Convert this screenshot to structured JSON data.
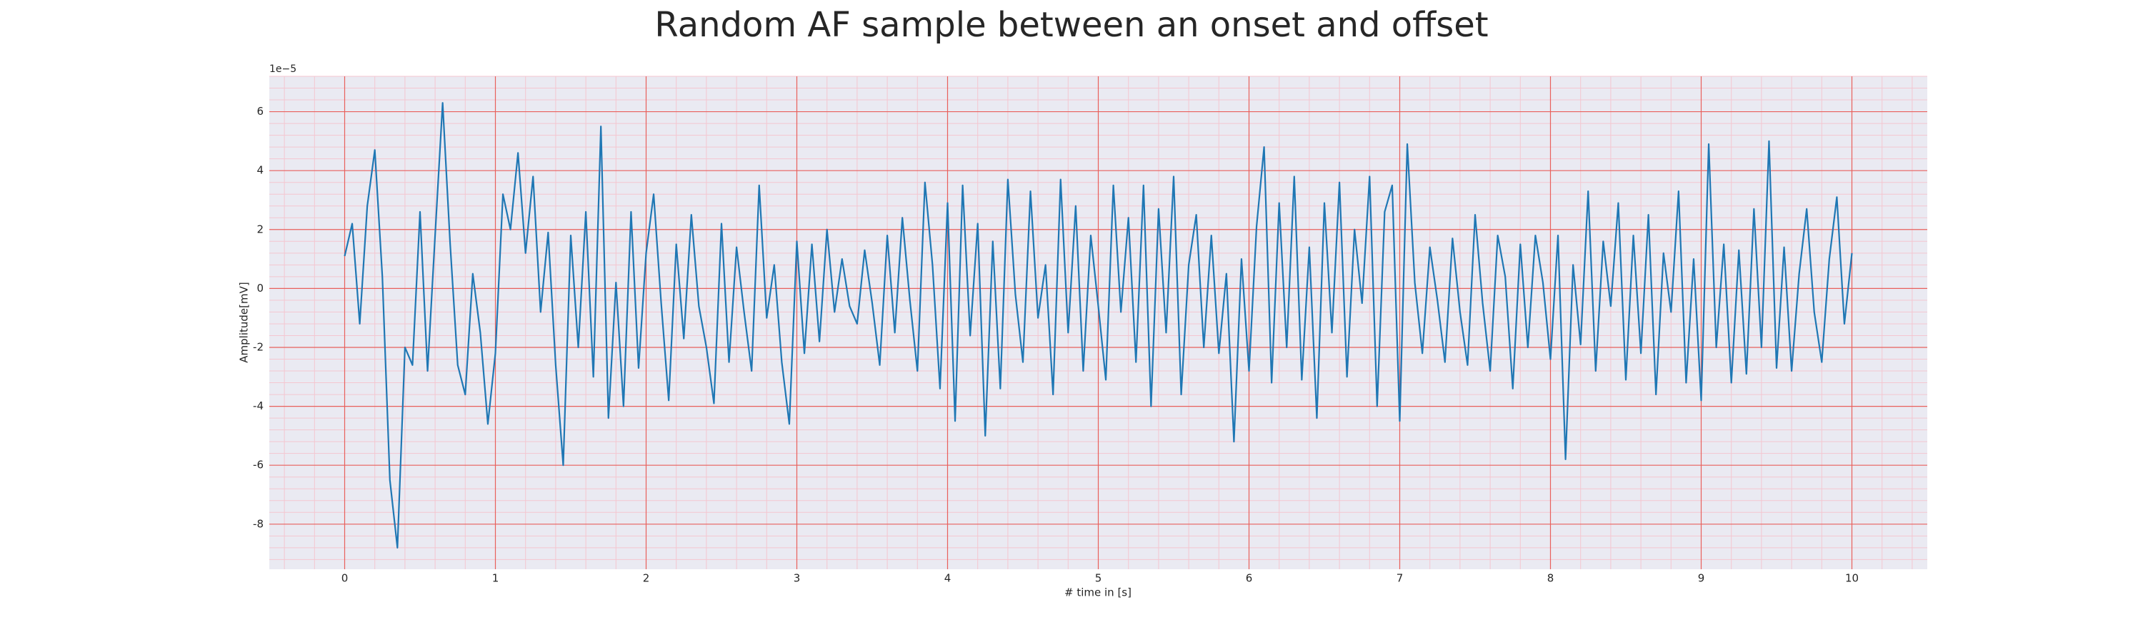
{
  "chart_data": {
    "type": "line",
    "title": "Random AF sample between an onset and offset",
    "xlabel": "# time in [s]",
    "ylabel": "Amplitude[mV]",
    "y_offset_text": "1e−5",
    "color": "#1f77b4",
    "grid": true,
    "minor_divisions": 5,
    "xlim": [
      -0.5,
      10.5
    ],
    "ylim": [
      -9.53,
      7.2
    ],
    "xticks": [
      0,
      1,
      2,
      3,
      4,
      5,
      6,
      7,
      8,
      9,
      10
    ],
    "yticks": [
      -8,
      -6,
      -4,
      -2,
      0,
      2,
      4,
      6
    ],
    "x": [
      0,
      0.05,
      0.1,
      0.15,
      0.2,
      0.25,
      0.3,
      0.35,
      0.4,
      0.45,
      0.5,
      0.55,
      0.6,
      0.65,
      0.7,
      0.75,
      0.8,
      0.85,
      0.9,
      0.95,
      1,
      1.05,
      1.1,
      1.15,
      1.2,
      1.25,
      1.3,
      1.35,
      1.4,
      1.45,
      1.5,
      1.55,
      1.6,
      1.65,
      1.7,
      1.75,
      1.8,
      1.85,
      1.9,
      1.95,
      2,
      2.05,
      2.1,
      2.15,
      2.2,
      2.25,
      2.3,
      2.35,
      2.4,
      2.45,
      2.5,
      2.55,
      2.6,
      2.65,
      2.7,
      2.75,
      2.8,
      2.85,
      2.9,
      2.95,
      3,
      3.05,
      3.1,
      3.15,
      3.2,
      3.25,
      3.3,
      3.35,
      3.4,
      3.45,
      3.5,
      3.55,
      3.6,
      3.65,
      3.7,
      3.75,
      3.8,
      3.85,
      3.9,
      3.95,
      4,
      4.05,
      4.1,
      4.15,
      4.2,
      4.25,
      4.3,
      4.35,
      4.4,
      4.45,
      4.5,
      4.55,
      4.6,
      4.65,
      4.7,
      4.75,
      4.8,
      4.85,
      4.9,
      4.95,
      5,
      5.05,
      5.1,
      5.15,
      5.2,
      5.25,
      5.3,
      5.35,
      5.4,
      5.45,
      5.5,
      5.55,
      5.6,
      5.65,
      5.7,
      5.75,
      5.8,
      5.85,
      5.9,
      5.95,
      6,
      6.05,
      6.1,
      6.15,
      6.2,
      6.25,
      6.3,
      6.35,
      6.4,
      6.45,
      6.5,
      6.55,
      6.6,
      6.65,
      6.7,
      6.75,
      6.8,
      6.85,
      6.9,
      6.95,
      7,
      7.05,
      7.1,
      7.15,
      7.2,
      7.25,
      7.3,
      7.35,
      7.4,
      7.45,
      7.5,
      7.55,
      7.6,
      7.65,
      7.7,
      7.75,
      7.8,
      7.85,
      7.9,
      7.95,
      8,
      8.05,
      8.1,
      8.15,
      8.2,
      8.25,
      8.3,
      8.35,
      8.4,
      8.45,
      8.5,
      8.55,
      8.6,
      8.65,
      8.7,
      8.75,
      8.8,
      8.85,
      8.9,
      8.95,
      9,
      9.05,
      9.1,
      9.15,
      9.2,
      9.25,
      9.3,
      9.35,
      9.4,
      9.45,
      9.5,
      9.55,
      9.6,
      9.65,
      9.7,
      9.75,
      9.8,
      9.85,
      9.9,
      9.95,
      10
    ],
    "values": [
      1.1,
      2.2,
      -1.2,
      2.8,
      4.7,
      0.4,
      -6.5,
      -8.8,
      -2.0,
      -2.6,
      2.6,
      -2.8,
      1.8,
      6.3,
      1.5,
      -2.6,
      -3.6,
      0.5,
      -1.5,
      -4.6,
      -2.2,
      3.2,
      2.0,
      4.6,
      1.2,
      3.8,
      -0.8,
      1.9,
      -2.6,
      -6.0,
      1.8,
      -2.0,
      2.6,
      -3.0,
      5.5,
      -4.4,
      0.2,
      -4.0,
      2.6,
      -2.7,
      1.2,
      3.2,
      -0.5,
      -3.8,
      1.5,
      -1.7,
      2.5,
      -0.6,
      -2.0,
      -3.9,
      2.2,
      -2.5,
      1.4,
      -0.8,
      -2.8,
      3.5,
      -1.0,
      0.8,
      -2.5,
      -4.6,
      1.6,
      -2.2,
      1.5,
      -1.8,
      2.0,
      -0.8,
      1.0,
      -0.6,
      -1.2,
      1.3,
      -0.5,
      -2.6,
      1.8,
      -1.5,
      2.4,
      -0.4,
      -2.8,
      3.6,
      0.8,
      -3.4,
      2.9,
      -4.5,
      3.5,
      -1.6,
      2.2,
      -5.0,
      1.6,
      -3.4,
      3.7,
      -0.2,
      -2.5,
      3.3,
      -1.0,
      0.8,
      -3.6,
      3.7,
      -1.5,
      2.8,
      -2.8,
      1.8,
      -0.6,
      -3.1,
      3.5,
      -0.8,
      2.4,
      -2.5,
      3.5,
      -4.0,
      2.7,
      -1.5,
      3.8,
      -3.6,
      0.8,
      2.5,
      -2.0,
      1.8,
      -2.2,
      0.5,
      -5.2,
      1.0,
      -2.8,
      2.1,
      4.8,
      -3.2,
      2.9,
      -2.0,
      3.8,
      -3.1,
      1.4,
      -4.4,
      2.9,
      -1.5,
      3.6,
      -3.0,
      2.0,
      -0.5,
      3.8,
      -4.0,
      2.6,
      3.5,
      -4.5,
      4.9,
      0.2,
      -2.2,
      1.4,
      -0.4,
      -2.5,
      1.7,
      -0.8,
      -2.6,
      2.5,
      -0.5,
      -2.8,
      1.8,
      0.4,
      -3.4,
      1.5,
      -2.0,
      1.8,
      0.2,
      -2.4,
      1.8,
      -5.8,
      0.8,
      -1.9,
      3.3,
      -2.8,
      1.6,
      -0.6,
      2.9,
      -3.1,
      1.8,
      -2.2,
      2.5,
      -3.6,
      1.2,
      -0.8,
      3.3,
      -3.2,
      1.0,
      -3.8,
      4.9,
      -2.0,
      1.5,
      -3.2,
      1.3,
      -2.9,
      2.7,
      -2.0,
      5.0,
      -2.7,
      1.4,
      -2.8,
      0.5,
      2.7,
      -0.8,
      -2.5,
      1.0,
      3.1,
      -1.2,
      1.2
    ]
  }
}
